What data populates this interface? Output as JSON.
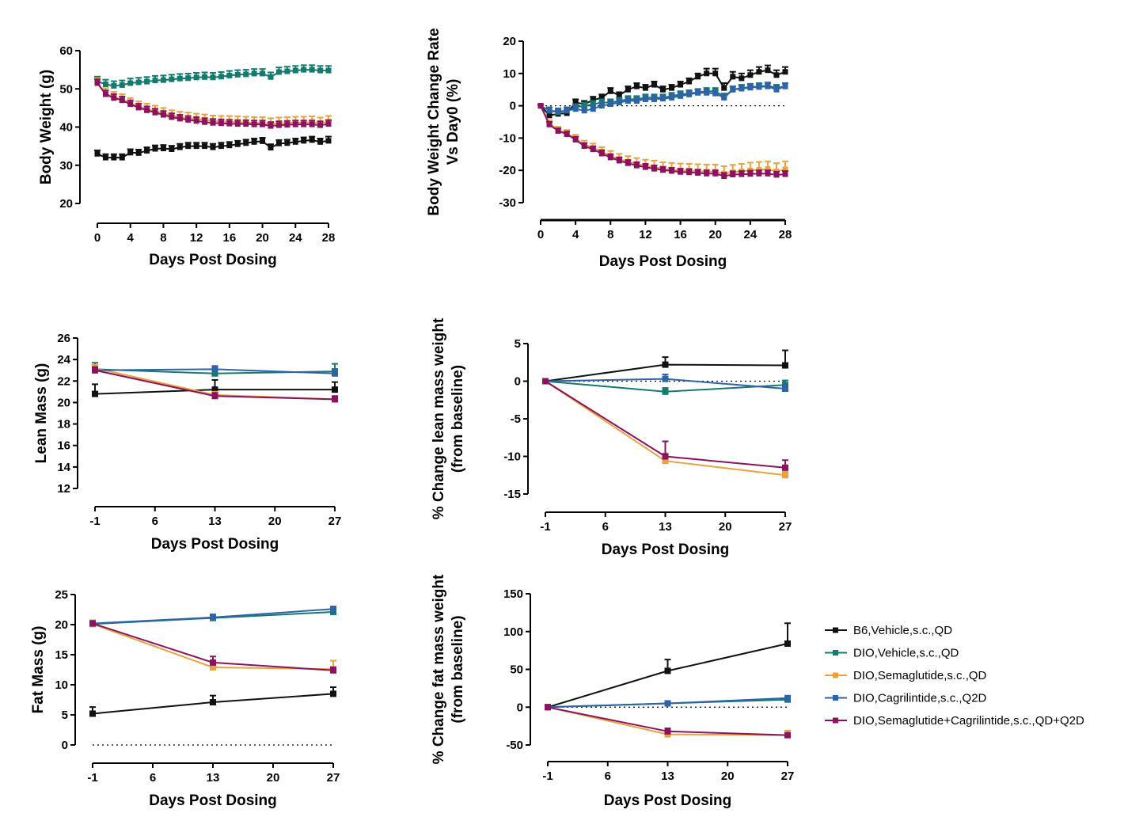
{
  "series_meta": [
    {
      "name": "B6,Vehicle,s.c.,QD",
      "color": "#111111"
    },
    {
      "name": "DIO,Vehicle,s.c.,QD",
      "color": "#137a6e"
    },
    {
      "name": "DIO,Semaglutide,s.c.,QD",
      "color": "#e9a33c"
    },
    {
      "name": "DIO,Cagrilintide,s.c.,Q2D",
      "color": "#2f63a8"
    },
    {
      "name": "DIO,Semaglutide+Cagrilintide,s.c.,QD+Q2D",
      "color": "#8c1160"
    }
  ],
  "chart_data": [
    {
      "id": "body-weight",
      "type": "line",
      "xlabel": "Days Post Dosing",
      "ylabel": [
        "Body Weight (g)"
      ],
      "xlim": [
        0,
        28
      ],
      "ylim": [
        20,
        60
      ],
      "xticks": [
        0,
        4,
        8,
        12,
        16,
        20,
        24,
        28
      ],
      "yticks": [
        20,
        30,
        40,
        50,
        60
      ],
      "zero_line": false,
      "x": [
        0,
        1,
        2,
        3,
        4,
        5,
        6,
        7,
        8,
        9,
        10,
        11,
        12,
        13,
        14,
        15,
        16,
        17,
        18,
        19,
        20,
        21,
        22,
        23,
        24,
        25,
        26,
        27,
        28
      ],
      "series": [
        {
          "name": "B6,Vehicle,s.c.,QD",
          "values": [
            33,
            32,
            32,
            32,
            33.3,
            33.2,
            33.8,
            34.3,
            34.4,
            34.2,
            34.7,
            35,
            35,
            35,
            34.7,
            35,
            35.2,
            35.5,
            35.8,
            36.1,
            36.3,
            34.6,
            35.7,
            35.8,
            36.1,
            36.4,
            36.6,
            36.1,
            36.4
          ],
          "err": [
            0.9,
            0.9,
            0.9,
            0.9,
            0.9,
            0.9,
            0.9,
            0.9,
            0.9,
            0.9,
            0.9,
            0.9,
            0.9,
            0.9,
            0.9,
            0.9,
            0.9,
            0.9,
            0.9,
            0.9,
            0.9,
            0.9,
            0.9,
            0.9,
            0.9,
            0.9,
            0.9,
            0.9,
            1.1
          ]
        },
        {
          "name": "DIO,Vehicle,s.c.,QD",
          "values": [
            52,
            51.2,
            50.8,
            51,
            51.5,
            51.7,
            51.9,
            52.2,
            52.3,
            52.5,
            52.7,
            52.8,
            53,
            53.1,
            53,
            53.2,
            53.5,
            53.7,
            53.8,
            54,
            54,
            53.1,
            54.4,
            54.6,
            54.8,
            55,
            55,
            54.8,
            54.8
          ],
          "err": [
            1.2,
            1.2,
            1.2,
            1.2,
            1.2,
            1.2,
            1.2,
            1.2,
            1.2,
            1.2,
            1.2,
            1.2,
            1.2,
            1.2,
            1.2,
            1.2,
            1.2,
            1.2,
            1.2,
            1.2,
            1.2,
            1.2,
            1.2,
            1.2,
            1.2,
            1.2,
            1.2,
            1.2,
            1.2
          ]
        },
        {
          "name": "DIO,Semaglutide,s.c.,QD",
          "values": [
            51.5,
            48.8,
            47.8,
            47.2,
            46.2,
            45.3,
            44.7,
            44.2,
            43.6,
            43,
            42.6,
            42.4,
            42.1,
            41.9,
            41.6,
            41.5,
            41.4,
            41.3,
            41.2,
            41.1,
            41.1,
            40.8,
            41,
            41.1,
            41.2,
            41.2,
            41.3,
            41,
            41.4
          ],
          "err": [
            1.3,
            1.4,
            1.4,
            1.4,
            1.4,
            1.4,
            1.4,
            1.4,
            1.4,
            1.4,
            1.4,
            1.4,
            1.4,
            1.4,
            1.4,
            1.4,
            1.5,
            1.5,
            1.5,
            1.5,
            1.5,
            1.5,
            1.5,
            1.5,
            1.5,
            1.5,
            1.5,
            1.5,
            1.5
          ]
        },
        {
          "name": "DIO,Cagrilintide,s.c.,Q2D",
          "values": [
            null,
            null,
            null,
            null,
            null,
            null,
            null,
            null,
            null,
            null,
            null,
            null,
            null,
            null,
            null,
            null,
            null,
            null,
            null,
            null,
            null,
            null,
            null,
            null,
            null,
            null,
            null,
            null,
            null
          ],
          "err": []
        },
        {
          "name": "DIO,Semaglutide+Cagrilintide,s.c.,QD+Q2D",
          "values": [
            51.5,
            48.6,
            47.6,
            47,
            46,
            45.1,
            44.4,
            43.8,
            43.2,
            42.6,
            42.2,
            41.9,
            41.6,
            41.3,
            41.1,
            41,
            40.9,
            40.8,
            40.8,
            40.7,
            40.7,
            40.3,
            40.5,
            40.6,
            40.7,
            40.7,
            40.7,
            40.5,
            40.8
          ],
          "err": [
            1,
            1,
            1,
            1,
            1,
            1,
            1,
            1,
            1,
            1,
            1,
            1,
            1,
            1,
            1,
            1,
            1,
            1,
            1,
            1,
            1,
            1,
            1,
            1,
            1,
            1,
            1,
            1,
            1
          ]
        }
      ]
    },
    {
      "id": "body-weight-change",
      "type": "line",
      "xlabel": "Days Post Dosing",
      "ylabel": [
        "Body Weight  Change Rate",
        "Vs Day0  (%)"
      ],
      "xlim": [
        0,
        28
      ],
      "ylim": [
        -30,
        20
      ],
      "xticks": [
        0,
        4,
        8,
        12,
        16,
        20,
        24,
        28
      ],
      "yticks": [
        -30,
        -20,
        -10,
        0,
        10,
        20
      ],
      "zero_line": true,
      "x": [
        0,
        1,
        2,
        3,
        4,
        5,
        6,
        7,
        8,
        9,
        10,
        11,
        12,
        13,
        14,
        15,
        16,
        17,
        18,
        19,
        20,
        21,
        22,
        23,
        24,
        25,
        26,
        27,
        28
      ],
      "series": [
        {
          "name": "B6,Vehicle,s.c.,QD",
          "values": [
            0,
            -3,
            -2.5,
            -2.3,
            1,
            0.5,
            1.8,
            2.5,
            4.5,
            3.2,
            5,
            6,
            5.5,
            6.5,
            5,
            5.5,
            6.5,
            7.5,
            9,
            10,
            10,
            5.5,
            9,
            8.5,
            9.5,
            10.5,
            11,
            9.5,
            10.5
          ],
          "err": [
            0.3,
            1,
            1,
            1,
            1,
            1,
            1,
            1,
            1,
            1,
            1,
            1,
            1,
            1,
            1,
            1,
            1,
            1,
            1,
            1.5,
            1.5,
            1.5,
            1.5,
            1.5,
            1.5,
            1.5,
            1.5,
            1.5,
            1.5
          ]
        },
        {
          "name": "DIO,Vehicle,s.c.,QD",
          "values": [
            0,
            -1.5,
            -2,
            -1.5,
            -0.5,
            0,
            0.5,
            1,
            1,
            1.5,
            2,
            2,
            2.5,
            2.5,
            2.5,
            3,
            3.5,
            3.8,
            4.2,
            4.5,
            4.5,
            2.8,
            5,
            5.5,
            5.8,
            6,
            6.2,
            5.5,
            6
          ],
          "err": [
            0.3,
            1,
            1,
            1,
            1,
            1,
            1,
            1,
            1,
            1,
            1,
            1,
            1,
            1,
            1,
            1,
            1,
            1,
            1,
            1,
            1,
            1,
            1,
            1,
            1,
            1,
            1,
            1,
            1
          ]
        },
        {
          "name": "DIO,Semaglutide,s.c.,QD",
          "values": [
            0,
            -5.5,
            -7.5,
            -8.5,
            -10.2,
            -12,
            -13,
            -14.2,
            -15.5,
            -16.5,
            -17.3,
            -18,
            -18.6,
            -19,
            -19.5,
            -19.8,
            -20,
            -20.1,
            -20.3,
            -20.4,
            -20.4,
            -21,
            -20.6,
            -20.3,
            -20,
            -19.8,
            -19.6,
            -20.3,
            -19.7
          ],
          "err": [
            0.3,
            1,
            1,
            1,
            1.2,
            1.2,
            1.3,
            1.4,
            1.5,
            1.6,
            1.7,
            1.8,
            1.9,
            2,
            2,
            2.1,
            2.1,
            2.1,
            2.2,
            2.2,
            2.2,
            2.3,
            2.3,
            2.3,
            2.4,
            2.4,
            2.4,
            2.5,
            2.5
          ]
        },
        {
          "name": "DIO,Cagrilintide,s.c.,Q2D",
          "values": [
            0,
            -1.5,
            -1.8,
            -1.5,
            -1,
            -1.5,
            -1,
            0,
            0.5,
            1,
            1.5,
            1.5,
            2,
            2,
            2.2,
            2.5,
            3,
            3.5,
            4,
            4,
            3.8,
            2.5,
            5,
            5.3,
            5.6,
            5.8,
            6,
            5,
            6
          ],
          "err": [
            0.3,
            1,
            1,
            1,
            1,
            1,
            1,
            1,
            1,
            1,
            1,
            1,
            1,
            1,
            1,
            1,
            1,
            1,
            1,
            1,
            1,
            1,
            1,
            1,
            1,
            1,
            1,
            1,
            1
          ]
        },
        {
          "name": "DIO,Semaglutide+Cagrilintide,s.c.,QD+Q2D",
          "values": [
            0,
            -5.8,
            -7.8,
            -8.8,
            -10.5,
            -12.5,
            -13.5,
            -14.8,
            -16,
            -17,
            -17.8,
            -18.5,
            -19,
            -19.5,
            -19.9,
            -20.2,
            -20.5,
            -20.6,
            -20.8,
            -21,
            -21,
            -21.8,
            -21.3,
            -21.2,
            -21.1,
            -21,
            -21,
            -21.4,
            -21.2
          ],
          "err": [
            0.3,
            0.8,
            0.8,
            0.8,
            0.9,
            0.9,
            0.9,
            1,
            1,
            1,
            1,
            1,
            1,
            1,
            1,
            1,
            1,
            1,
            1,
            1,
            1,
            1,
            1,
            1,
            1,
            1,
            1,
            1,
            1
          ]
        }
      ]
    },
    {
      "id": "lean-mass",
      "type": "line",
      "xlabel": "Days Post Dosing",
      "ylabel": [
        "Lean Mass (g)"
      ],
      "xlim": [
        -1,
        27
      ],
      "ylim": [
        12,
        26
      ],
      "xticks": [
        -1,
        6,
        13,
        20,
        27
      ],
      "yticks": [
        12,
        14,
        16,
        18,
        20,
        22,
        24,
        26
      ],
      "zero_line": false,
      "x": [
        -1,
        13,
        27
      ],
      "series": [
        {
          "name": "B6,Vehicle,s.c.,QD",
          "values": [
            20.8,
            21.2,
            21.2
          ],
          "err": [
            0.9,
            0.9,
            0.7
          ]
        },
        {
          "name": "DIO,Vehicle,s.c.,QD",
          "values": [
            23.1,
            22.7,
            22.9
          ],
          "err": [
            0.6,
            0.6,
            0.7
          ]
        },
        {
          "name": "DIO,Semaglutide,s.c.,QD",
          "values": [
            23.2,
            20.7,
            20.3
          ],
          "err": [
            0.3,
            0.3,
            0.3
          ]
        },
        {
          "name": "DIO,Cagrilintide,s.c.,Q2D",
          "values": [
            23.0,
            23.1,
            22.7
          ],
          "err": [
            0.3,
            0.3,
            0.3
          ]
        },
        {
          "name": "DIO,Semaglutide+Cagrilintide,s.c.,QD+Q2D",
          "values": [
            23.0,
            20.6,
            20.3
          ],
          "err": [
            0.3,
            0.3,
            0.3
          ]
        }
      ]
    },
    {
      "id": "lean-mass-change",
      "type": "line",
      "xlabel": "Days Post Dosing",
      "ylabel": [
        "% Change lean mass weight",
        "(from baseline)"
      ],
      "xlim": [
        -1,
        27
      ],
      "ylim": [
        -15,
        5
      ],
      "xticks": [
        -1,
        6,
        13,
        20,
        27
      ],
      "yticks": [
        -15,
        -10,
        -5,
        0,
        5
      ],
      "zero_line": true,
      "x": [
        -1,
        13,
        27
      ],
      "series": [
        {
          "name": "B6,Vehicle,s.c.,QD",
          "values": [
            0,
            2.2,
            2.1
          ],
          "err": [
            0,
            1,
            2
          ]
        },
        {
          "name": "DIO,Vehicle,s.c.,QD",
          "values": [
            0,
            -1.4,
            -0.5
          ],
          "err": [
            0,
            0.5,
            0.6
          ]
        },
        {
          "name": "DIO,Semaglutide,s.c.,QD",
          "values": [
            0,
            -10.6,
            -12.5
          ],
          "err": [
            0,
            1,
            0.5
          ]
        },
        {
          "name": "DIO,Cagrilintide,s.c.,Q2D",
          "values": [
            0,
            0.3,
            -1.0
          ],
          "err": [
            0,
            0.6,
            0.6
          ]
        },
        {
          "name": "DIO,Semaglutide+Cagrilintide,s.c.,QD+Q2D",
          "values": [
            0,
            -10.0,
            -11.5
          ],
          "err": [
            0,
            2,
            1
          ]
        }
      ]
    },
    {
      "id": "fat-mass",
      "type": "line",
      "xlabel": "Days Post Dosing",
      "ylabel": [
        "Fat Mass (g)"
      ],
      "xlim": [
        -1,
        27
      ],
      "ylim": [
        0,
        25
      ],
      "xticks": [
        -1,
        6,
        13,
        20,
        27
      ],
      "yticks": [
        0,
        5,
        10,
        15,
        20,
        25
      ],
      "zero_line": true,
      "x": [
        -1,
        13,
        27
      ],
      "series": [
        {
          "name": "B6,Vehicle,s.c.,QD",
          "values": [
            5.2,
            7.1,
            8.5
          ],
          "err": [
            1.1,
            1.1,
            1.1
          ]
        },
        {
          "name": "DIO,Vehicle,s.c.,QD",
          "values": [
            20.1,
            21.1,
            22.1
          ],
          "err": [
            0.6,
            0.6,
            0.6
          ]
        },
        {
          "name": "DIO,Semaglutide,s.c.,QD",
          "values": [
            20.1,
            12.9,
            12.6
          ],
          "err": [
            0.6,
            0.6,
            1.4
          ]
        },
        {
          "name": "DIO,Cagrilintide,s.c.,Q2D",
          "values": [
            20.2,
            21.2,
            22.6
          ],
          "err": [
            0.4,
            0.4,
            0.4
          ]
        },
        {
          "name": "DIO,Semaglutide+Cagrilintide,s.c.,QD+Q2D",
          "values": [
            20.2,
            13.7,
            12.4
          ],
          "err": [
            0.4,
            1,
            0.5
          ]
        }
      ]
    },
    {
      "id": "fat-mass-change",
      "type": "line",
      "xlabel": "Days Post Dosing",
      "ylabel": [
        "% Change fat mass weight",
        "(from baseline)"
      ],
      "xlim": [
        -1,
        27
      ],
      "ylim": [
        -50,
        150
      ],
      "xticks": [
        -1,
        6,
        13,
        20,
        27
      ],
      "yticks": [
        -50,
        0,
        50,
        100,
        150
      ],
      "zero_line": true,
      "x": [
        -1,
        13,
        27
      ],
      "series": [
        {
          "name": "B6,Vehicle,s.c.,QD",
          "values": [
            0,
            48,
            84
          ],
          "err": [
            0,
            15,
            27
          ]
        },
        {
          "name": "DIO,Vehicle,s.c.,QD",
          "values": [
            0,
            5,
            10
          ],
          "err": [
            0,
            2,
            3
          ]
        },
        {
          "name": "DIO,Semaglutide,s.c.,QD",
          "values": [
            0,
            -36,
            -37
          ],
          "err": [
            0,
            3,
            6
          ]
        },
        {
          "name": "DIO,Cagrilintide,s.c.,Q2D",
          "values": [
            0,
            5,
            12
          ],
          "err": [
            0,
            2,
            2
          ]
        },
        {
          "name": "DIO,Semaglutide+Cagrilintide,s.c.,QD+Q2D",
          "values": [
            0,
            -32,
            -37
          ],
          "err": [
            0,
            4,
            3
          ]
        }
      ]
    }
  ]
}
